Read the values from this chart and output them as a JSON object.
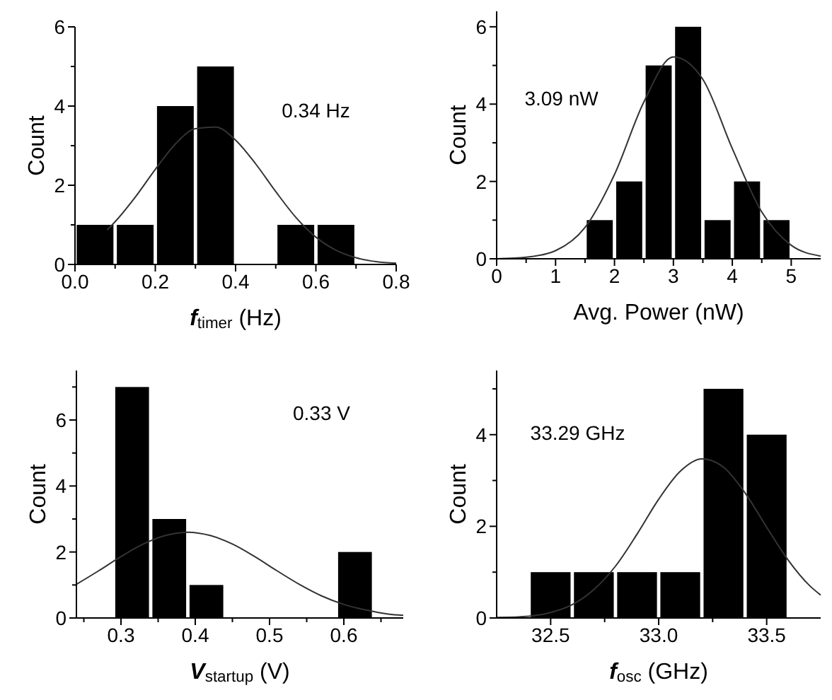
{
  "chart_data": [
    {
      "type": "histogram",
      "xlabel": "f$_{timer}$ (Hz)",
      "ylabel": "Count",
      "annotations": [
        "0.34 Hz"
      ],
      "xlim": [
        0,
        0.8
      ],
      "ylim": [
        0,
        6
      ],
      "xticks": [
        {
          "value": 0,
          "label": "0.0"
        },
        {
          "value": 0.1,
          "label": null
        },
        {
          "value": 0.2,
          "label": "0.2"
        },
        {
          "value": 0.3,
          "label": null
        },
        {
          "value": 0.4,
          "label": "0.4"
        },
        {
          "value": 0.5,
          "label": null
        },
        {
          "value": 0.6,
          "label": "0.6"
        },
        {
          "value": 0.7,
          "label": null
        },
        {
          "value": 0.8,
          "label": "0.8"
        }
      ],
      "yticks": [
        0,
        {
          "value": 1,
          "label": null
        },
        2,
        {
          "value": 3,
          "label": null
        },
        4,
        {
          "value": 5,
          "label": null
        },
        6
      ],
      "series": [
        {
          "color": "#000000",
          "bins": [
            0,
            0.1,
            0.2,
            0.3,
            0.4,
            0.5,
            0.6,
            0.7
          ],
          "values": [
            1,
            1,
            4,
            5,
            0,
            1,
            1
          ]
        },
        {
          "type": "line",
          "color": "#333333",
          "x": [
            0.08,
            0.1,
            0.15,
            0.2,
            0.25,
            0.3,
            0.35,
            0.4,
            0.45,
            0.5,
            0.55,
            0.6,
            0.65,
            0.7,
            0.75,
            0.8
          ],
          "values": [
            0.87,
            1.08,
            1.7,
            2.4,
            3.04,
            3.43,
            3.47,
            3.14,
            2.54,
            1.84,
            1.19,
            0.69,
            0.36,
            0.17,
            0.07,
            0.03
          ]
        }
      ]
    },
    {
      "type": "histogram",
      "xlabel": "Avg. Power (nW)",
      "ylabel": "Count",
      "annotations": [
        "3.09 nW"
      ],
      "xlim": [
        0,
        5.5
      ],
      "ylim": [
        0,
        6.4
      ],
      "xticks": [
        0,
        {
          "value": 0.5,
          "label": null
        },
        1,
        {
          "value": 1.5,
          "label": null
        },
        2,
        {
          "value": 2.5,
          "label": null
        },
        3,
        {
          "value": 3.5,
          "label": null
        },
        4,
        {
          "value": 4.5,
          "label": null
        },
        5
      ],
      "yticks": [
        0,
        {
          "value": 1,
          "label": null
        },
        2,
        {
          "value": 3,
          "label": null
        },
        4,
        {
          "value": 5,
          "label": null
        },
        6
      ],
      "series": [
        {
          "color": "#000000",
          "bins": [
            1.5,
            2,
            2.5,
            3,
            3.5,
            4,
            4.5,
            5
          ],
          "values": [
            1,
            2,
            5,
            6,
            1,
            2,
            1
          ]
        },
        {
          "type": "line",
          "color": "#333333",
          "x": [
            0,
            0.5,
            1,
            1.5,
            2,
            2.5,
            3,
            3.5,
            4,
            4.5,
            5,
            5.5
          ],
          "values": [
            0,
            0.04,
            0.21,
            0.81,
            2.18,
            4.06,
            5.22,
            4.64,
            2.85,
            1.21,
            0.35,
            0.07
          ]
        }
      ]
    },
    {
      "type": "histogram",
      "xlabel": "V$_{startup}$ (V)",
      "ylabel": "Count",
      "annotations": [
        "0.33 V"
      ],
      "xlim": [
        0.24,
        0.68
      ],
      "ylim": [
        0,
        7.5
      ],
      "xticks": [
        {
          "value": 0.25,
          "label": null
        },
        0.3,
        {
          "value": 0.35,
          "label": null
        },
        0.4,
        {
          "value": 0.45,
          "label": null
        },
        0.5,
        {
          "value": 0.55,
          "label": null
        },
        0.6,
        {
          "value": 0.65,
          "label": null
        }
      ],
      "yticks": [
        0,
        {
          "value": 1,
          "label": null
        },
        2,
        {
          "value": 3,
          "label": null
        },
        4,
        {
          "value": 5,
          "label": null
        },
        6,
        {
          "value": 7,
          "label": null
        }
      ],
      "series": [
        {
          "color": "#000000",
          "bins": [
            0.29,
            0.34,
            0.39,
            0.44,
            0.49,
            0.54,
            0.59,
            0.64
          ],
          "values": [
            7,
            3,
            1,
            0,
            0,
            0,
            2
          ]
        },
        {
          "type": "line",
          "color": "#333333",
          "x": [
            0.24,
            0.27,
            0.3,
            0.33,
            0.36,
            0.39,
            0.42,
            0.45,
            0.48,
            0.51,
            0.54,
            0.57,
            0.6,
            0.63,
            0.66,
            0.68
          ],
          "values": [
            1.02,
            1.43,
            1.86,
            2.24,
            2.5,
            2.6,
            2.5,
            2.24,
            1.86,
            1.43,
            1.02,
            0.67,
            0.41,
            0.24,
            0.12,
            0.08
          ]
        }
      ]
    },
    {
      "type": "histogram",
      "xlabel": "f$_{osc}$ (GHz)",
      "ylabel": "Count",
      "annotations": [
        "33.29 GHz"
      ],
      "xlim": [
        32.25,
        33.75
      ],
      "ylim": [
        0,
        5.4
      ],
      "xticks": [
        {
          "value": 32.5,
          "label": "32.5"
        },
        {
          "value": 32.75,
          "label": null
        },
        {
          "value": 33,
          "label": "33.0"
        },
        {
          "value": 33.25,
          "label": null
        },
        {
          "value": 33.5,
          "label": "33.5"
        }
      ],
      "yticks": [
        0,
        {
          "value": 1,
          "label": null
        },
        2,
        {
          "value": 3,
          "label": null
        },
        4,
        {
          "value": 5,
          "label": null
        }
      ],
      "series": [
        {
          "color": "#000000",
          "bins": [
            32.4,
            32.6,
            32.8,
            33,
            33.2,
            33.4,
            33.6
          ],
          "values": [
            1,
            1,
            1,
            1,
            5,
            4
          ]
        },
        {
          "type": "line",
          "color": "#333333",
          "x": [
            32.25,
            32.4,
            32.5,
            32.6,
            32.7,
            32.8,
            32.9,
            33,
            33.1,
            33.2,
            33.3,
            33.4,
            33.5,
            33.6,
            33.7,
            33.75
          ],
          "values": [
            0.01,
            0.04,
            0.12,
            0.29,
            0.62,
            1.13,
            1.83,
            2.59,
            3.2,
            3.47,
            3.29,
            2.73,
            1.98,
            1.26,
            0.7,
            0.5
          ]
        }
      ]
    }
  ]
}
